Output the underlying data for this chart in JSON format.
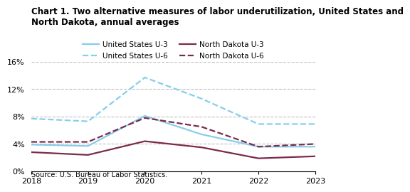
{
  "title_line1": "Chart 1. Two alternative measures of labor underutilization, United States and",
  "title_line2": "North Dakota, annual averages",
  "years": [
    2018,
    2019,
    2020,
    2021,
    2022,
    2023
  ],
  "us_u3": [
    3.9,
    3.7,
    8.1,
    5.4,
    3.6,
    3.6
  ],
  "us_u6": [
    7.7,
    7.3,
    13.7,
    10.6,
    6.9,
    6.9
  ],
  "nd_u3": [
    2.8,
    2.4,
    4.4,
    3.5,
    1.9,
    2.2
  ],
  "nd_u6": [
    4.3,
    4.3,
    7.8,
    6.5,
    3.6,
    4.0
  ],
  "color_us": "#87CEEB",
  "color_nd": "#7B2A4A",
  "ylim": [
    0,
    16
  ],
  "yticks": [
    0,
    4,
    8,
    12,
    16
  ],
  "ytick_labels": [
    "0%",
    "4%",
    "8%",
    "12%",
    "16%"
  ],
  "source": "Source: U.S. Bureau of Labor Statistics.",
  "legend": [
    {
      "label": "United States U-3",
      "color": "#87CEEB",
      "ls": "solid"
    },
    {
      "label": "United States U-6",
      "color": "#87CEEB",
      "ls": "dashed"
    },
    {
      "label": "North Dakota U-3",
      "color": "#7B2A4A",
      "ls": "solid"
    },
    {
      "label": "North Dakota U-6",
      "color": "#7B2A4A",
      "ls": "dashed"
    }
  ]
}
